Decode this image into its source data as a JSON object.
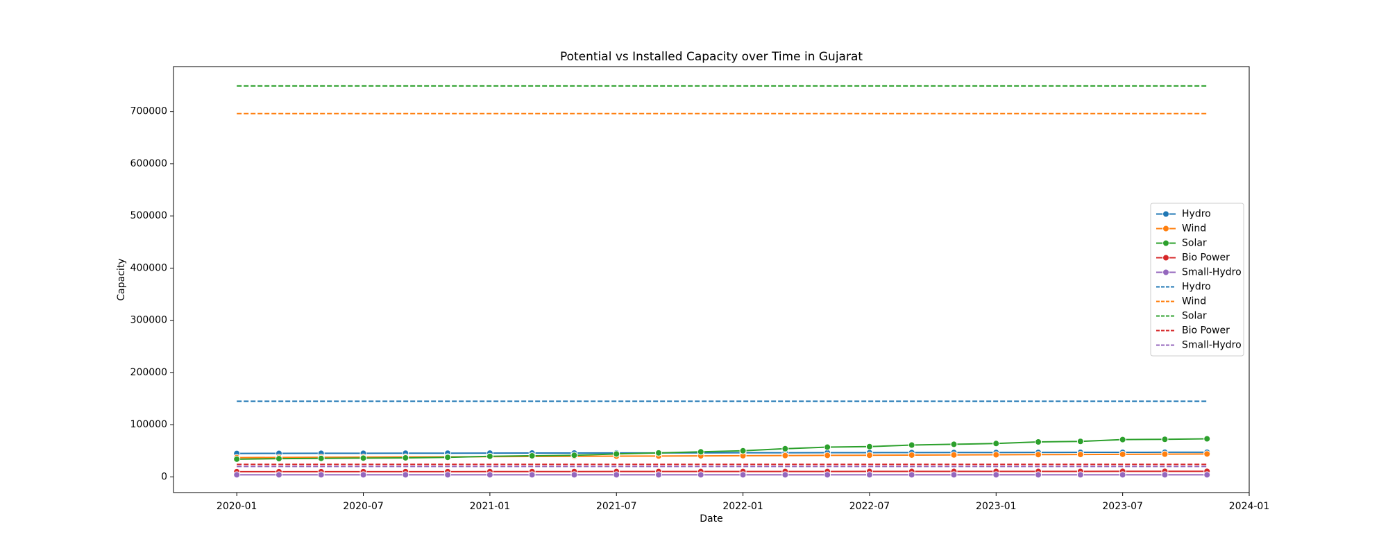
{
  "chart_data": {
    "type": "line",
    "title": "Potential vs Installed Capacity over Time in Gujarat",
    "x_label": "Date",
    "y_label": "Capacity",
    "x": [
      "2020-01",
      "2020-03",
      "2020-05",
      "2020-07",
      "2020-09",
      "2020-11",
      "2021-01",
      "2021-03",
      "2021-05",
      "2021-07",
      "2021-09",
      "2021-11",
      "2022-01",
      "2022-03",
      "2022-05",
      "2022-07",
      "2022-09",
      "2022-11",
      "2023-01",
      "2023-03",
      "2023-05",
      "2023-07",
      "2023-09",
      "2023-11"
    ],
    "xlim": [
      "2019-10",
      "2024-01"
    ],
    "xticks": [
      "2020-01",
      "2020-07",
      "2021-01",
      "2021-07",
      "2022-01",
      "2022-07",
      "2023-01",
      "2023-07",
      "2024-01"
    ],
    "ylim": [
      -30000,
      786000
    ],
    "yticks": [
      0,
      100000,
      200000,
      300000,
      400000,
      500000,
      600000,
      700000
    ],
    "legend": "center right",
    "series": [
      {
        "name": "Hydro",
        "color": "#1f77b4",
        "style": "solid",
        "marker": true,
        "values": [
          45000,
          45100,
          45200,
          45300,
          45400,
          45500,
          45600,
          45700,
          45800,
          45900,
          46000,
          46100,
          46200,
          46300,
          46400,
          46500,
          46600,
          46700,
          46800,
          46900,
          47000,
          47100,
          47200,
          47300
        ]
      },
      {
        "name": "Wind",
        "color": "#ff7f0e",
        "style": "solid",
        "marker": true,
        "values": [
          37000,
          37300,
          37600,
          37900,
          38200,
          38500,
          38800,
          39100,
          39400,
          39700,
          40000,
          40300,
          40600,
          40900,
          41200,
          41500,
          41800,
          42100,
          42400,
          42700,
          43000,
          43300,
          43600,
          44000
        ]
      },
      {
        "name": "Solar",
        "color": "#2ca02c",
        "style": "solid",
        "marker": true,
        "values": [
          34000,
          35000,
          35500,
          36000,
          36500,
          37500,
          39500,
          40500,
          41500,
          44000,
          46000,
          48000,
          50000,
          54000,
          57000,
          58000,
          61000,
          62500,
          64000,
          67000,
          68000,
          71500,
          72000,
          73000
        ]
      },
      {
        "name": "Bio Power",
        "color": "#d62728",
        "style": "solid",
        "marker": true,
        "values": [
          10000,
          10000,
          10000,
          10100,
          10100,
          10100,
          10200,
          10200,
          10200,
          10300,
          10300,
          10300,
          10400,
          10400,
          10400,
          10500,
          10500,
          10500,
          10600,
          10600,
          10600,
          10700,
          10700,
          10700
        ]
      },
      {
        "name": "Small-Hydro",
        "color": "#9467bd",
        "style": "solid",
        "marker": true,
        "values": [
          4000,
          4000,
          4000,
          4000,
          4000,
          4000,
          4000,
          4000,
          4000,
          4000,
          4000,
          4000,
          4000,
          4000,
          4000,
          4000,
          4000,
          4000,
          4000,
          4000,
          4000,
          4000,
          4000,
          4000
        ]
      },
      {
        "name": "Hydro",
        "color": "#1f77b4",
        "style": "dashed",
        "marker": false,
        "values": [
          145000,
          145000,
          145000,
          145000,
          145000,
          145000,
          145000,
          145000,
          145000,
          145000,
          145000,
          145000,
          145000,
          145000,
          145000,
          145000,
          145000,
          145000,
          145000,
          145000,
          145000,
          145000,
          145000,
          145000
        ]
      },
      {
        "name": "Wind",
        "color": "#ff7f0e",
        "style": "dashed",
        "marker": false,
        "values": [
          696000,
          696000,
          696000,
          696000,
          696000,
          696000,
          696000,
          696000,
          696000,
          696000,
          696000,
          696000,
          696000,
          696000,
          696000,
          696000,
          696000,
          696000,
          696000,
          696000,
          696000,
          696000,
          696000,
          696000
        ]
      },
      {
        "name": "Solar",
        "color": "#2ca02c",
        "style": "dashed",
        "marker": false,
        "values": [
          749000,
          749000,
          749000,
          749000,
          749000,
          749000,
          749000,
          749000,
          749000,
          749000,
          749000,
          749000,
          749000,
          749000,
          749000,
          749000,
          749000,
          749000,
          749000,
          749000,
          749000,
          749000,
          749000,
          749000
        ]
      },
      {
        "name": "Bio Power",
        "color": "#d62728",
        "style": "dashed",
        "marker": false,
        "values": [
          24000,
          24000,
          24000,
          24000,
          24000,
          24000,
          24000,
          24000,
          24000,
          24000,
          24000,
          24000,
          24000,
          24000,
          24000,
          24000,
          24000,
          24000,
          24000,
          24000,
          24000,
          24000,
          24000,
          24000
        ]
      },
      {
        "name": "Small-Hydro",
        "color": "#9467bd",
        "style": "dashed",
        "marker": false,
        "values": [
          20000,
          20000,
          20000,
          20000,
          20000,
          20000,
          20000,
          20000,
          20000,
          20000,
          20000,
          20000,
          20000,
          20000,
          20000,
          20000,
          20000,
          20000,
          20000,
          20000,
          20000,
          20000,
          20000,
          20000
        ]
      }
    ]
  }
}
